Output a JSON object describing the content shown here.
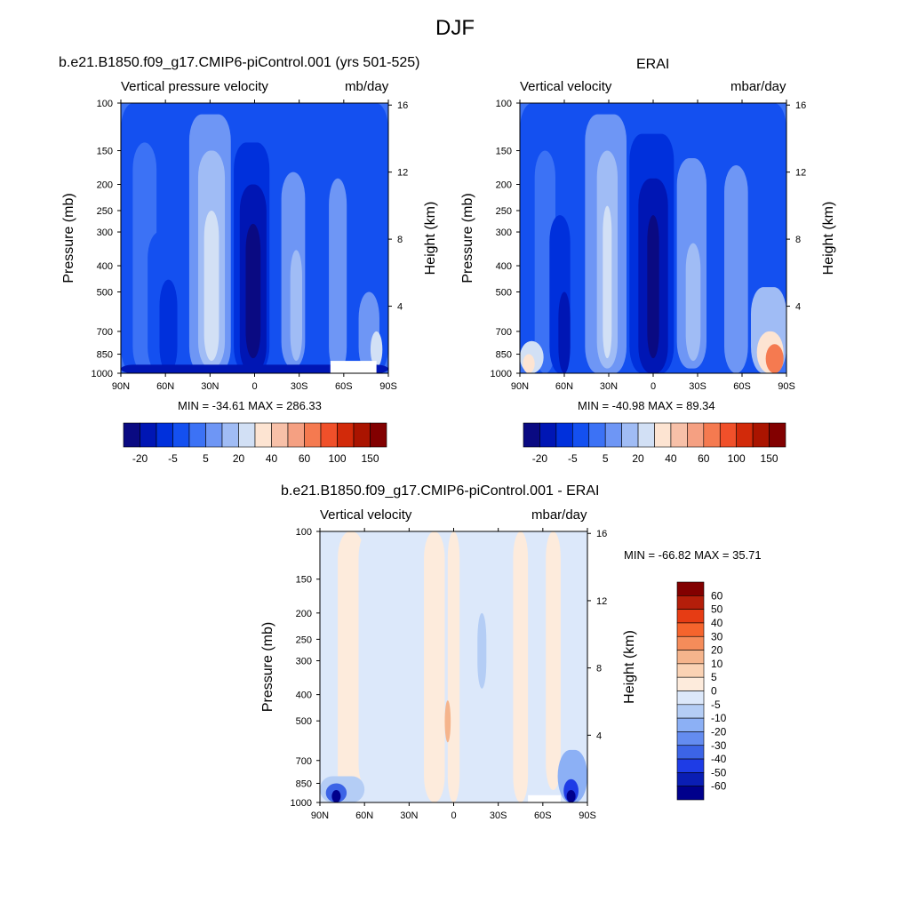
{
  "figure": {
    "title": "DJF"
  },
  "panels": [
    {
      "title": "b.e21.B1850.f09_g17.CMIP6-piControl.001 (yrs 501-525)",
      "left_label": "Vertical pressure velocity",
      "right_label": "mb/day",
      "minmax": "MIN = -34.61  MAX = 286.33",
      "y_left_label": "Pressure (mb)",
      "y_right_label": "Height (km)"
    },
    {
      "title": "ERAI",
      "left_label": "Vertical velocity",
      "right_label": "mbar/day",
      "minmax": "MIN = -40.98  MAX =  89.34",
      "y_left_label": "Pressure (mb)",
      "y_right_label": "Height (km)"
    },
    {
      "title": "b.e21.B1850.f09_g17.CMIP6-piControl.001 - ERAI",
      "left_label": "Vertical velocity",
      "right_label": "mbar/day",
      "minmax": "MIN = -66.82  MAX =  35.71",
      "y_left_label": "Pressure (mb)",
      "y_right_label": "Height (km)"
    }
  ],
  "chart_data": [
    {
      "type": "heatmap",
      "title": "b.e21.B1850.f09_g17.CMIP6-piControl.001 (yrs 501-525)",
      "x_ticks": [
        "90N",
        "60N",
        "30N",
        "0",
        "30S",
        "60S",
        "90S"
      ],
      "x_values": [
        90,
        60,
        30,
        0,
        -30,
        -60,
        -90
      ],
      "y_ticks": [
        "100",
        "150",
        "200",
        "250",
        "300",
        "400",
        "500",
        "700",
        "850",
        "1000"
      ],
      "y_values": [
        100,
        150,
        200,
        250,
        300,
        400,
        500,
        700,
        850,
        1000
      ],
      "y_scale": "log",
      "y_right_ticks": [
        "16",
        "12",
        "8",
        "4"
      ],
      "y_right_values": [
        16,
        12,
        8,
        4
      ],
      "colorbar_labels": [
        "-20",
        "-5",
        "5",
        "20",
        "40",
        "60",
        "100",
        "150"
      ],
      "colorbar_colors": [
        "#0a0a82",
        "#0016b4",
        "#0030dc",
        "#1450f0",
        "#3c72f5",
        "#6e96f5",
        "#a0bcf5",
        "#d2e0f5",
        "#fde4d2",
        "#f7c0a8",
        "#f5a082",
        "#f57a50",
        "#f0502a",
        "#d22a0a",
        "#aa1400",
        "#820000"
      ],
      "min": -34.61,
      "max": 286.33
    },
    {
      "type": "heatmap",
      "title": "ERAI",
      "x_ticks": [
        "90N",
        "60N",
        "30N",
        "0",
        "30S",
        "60S",
        "90S"
      ],
      "x_values": [
        90,
        60,
        30,
        0,
        -30,
        -60,
        -90
      ],
      "y_ticks": [
        "100",
        "150",
        "200",
        "250",
        "300",
        "400",
        "500",
        "700",
        "850",
        "1000"
      ],
      "y_values": [
        100,
        150,
        200,
        250,
        300,
        400,
        500,
        700,
        850,
        1000
      ],
      "y_scale": "log",
      "y_right_ticks": [
        "16",
        "12",
        "8",
        "4"
      ],
      "y_right_values": [
        16,
        12,
        8,
        4
      ],
      "colorbar_labels": [
        "-20",
        "-5",
        "5",
        "20",
        "40",
        "60",
        "100",
        "150"
      ],
      "colorbar_colors": [
        "#0a0a82",
        "#0016b4",
        "#0030dc",
        "#1450f0",
        "#3c72f5",
        "#6e96f5",
        "#a0bcf5",
        "#d2e0f5",
        "#fde4d2",
        "#f7c0a8",
        "#f5a082",
        "#f57a50",
        "#f0502a",
        "#d22a0a",
        "#aa1400",
        "#820000"
      ],
      "min": -40.98,
      "max": 89.34
    },
    {
      "type": "heatmap",
      "title": "b.e21.B1850.f09_g17.CMIP6-piControl.001 - ERAI",
      "x_ticks": [
        "90N",
        "60N",
        "30N",
        "0",
        "30S",
        "60S",
        "90S"
      ],
      "x_values": [
        90,
        60,
        30,
        0,
        -30,
        -60,
        -90
      ],
      "y_ticks": [
        "100",
        "150",
        "200",
        "250",
        "300",
        "400",
        "500",
        "700",
        "850",
        "1000"
      ],
      "y_values": [
        100,
        150,
        200,
        250,
        300,
        400,
        500,
        700,
        850,
        1000
      ],
      "y_scale": "log",
      "y_right_ticks": [
        "16",
        "12",
        "8",
        "4"
      ],
      "y_right_values": [
        16,
        12,
        8,
        4
      ],
      "colorbar_labels": [
        "60",
        "50",
        "40",
        "30",
        "20",
        "10",
        "5",
        "0",
        "-5",
        "-10",
        "-20",
        "-30",
        "-40",
        "-50",
        "-60"
      ],
      "colorbar_colors": [
        "#820000",
        "#b41e0a",
        "#e63c14",
        "#f5642d",
        "#f58c5a",
        "#f5b48c",
        "#fad2b4",
        "#fdebdc",
        "#dce8fa",
        "#b4cdf5",
        "#8cb0f5",
        "#648cf0",
        "#3c64e6",
        "#1e3ce6",
        "#0a1eb4",
        "#00008c"
      ],
      "min": -66.82,
      "max": 35.71
    }
  ]
}
